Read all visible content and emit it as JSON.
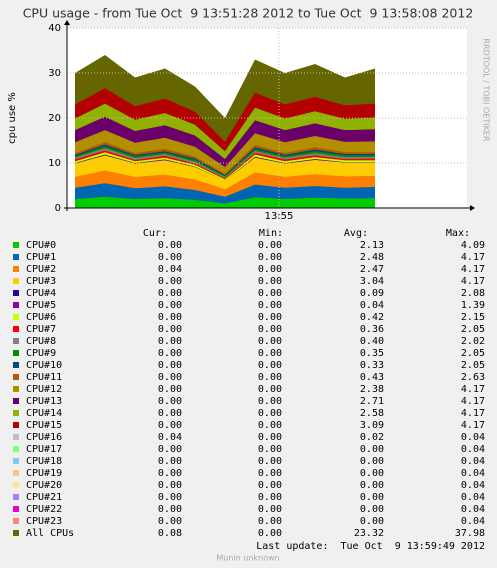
{
  "chart_data": {
    "type": "area",
    "title": "CPU usage - from Tue Oct  9 13:51:28 2012 to Tue Oct  9 13:58:08 2012",
    "ylabel": "cpu use %",
    "side_text": "RRDTOOL / TOBI OETIKER",
    "footer": "Munin unknown",
    "last_update": "Last update:  Tue Oct  9 13:59:49 2012",
    "legend_header": [
      "Cur:",
      "Min:",
      "Avg:",
      "Max:"
    ],
    "grid": true,
    "stacked": true,
    "x": [
      "13:51:36",
      "13:52:06",
      "13:52:36",
      "13:53:06",
      "13:53:36",
      "13:54:06",
      "13:54:36",
      "13:55:06",
      "13:55:36",
      "13:56:06",
      "13:56:36"
    ],
    "xlim": [
      "13:51:28",
      "13:58:08"
    ],
    "xticks": [
      {
        "value": "13:55:00",
        "label": "13:55"
      }
    ],
    "ylim": [
      0,
      40
    ],
    "yticks": [
      0,
      10,
      20,
      30,
      40
    ],
    "series": [
      {
        "name": "All CPUs",
        "color": "#666600",
        "stack": false,
        "values": [
          30,
          34,
          29,
          31,
          27,
          20,
          33,
          30,
          32,
          29,
          31
        ],
        "cur": "0.08",
        "min": "0.00",
        "avg": "23.32",
        "max": "37.98"
      },
      {
        "name": "CPU#0",
        "color": "#00cc00",
        "values": [
          2,
          2.5,
          2,
          2.2,
          1.8,
          1,
          2.4,
          2,
          2.3,
          2.1,
          2.2
        ],
        "cur": "0.00",
        "min": "0.00",
        "avg": "2.13",
        "max": "4.09"
      },
      {
        "name": "CPU#1",
        "color": "#0066b3",
        "values": [
          2.5,
          3,
          2.4,
          2.6,
          2.2,
          1.5,
          2.8,
          2.5,
          2.6,
          2.4,
          2.5
        ],
        "cur": "0.00",
        "min": "0.00",
        "avg": "2.48",
        "max": "4.17"
      },
      {
        "name": "CPU#2",
        "color": "#ff8000",
        "values": [
          2.4,
          2.8,
          2.5,
          2.6,
          2.3,
          1.6,
          2.7,
          2.4,
          2.6,
          2.5,
          2.4
        ],
        "cur": "0.04",
        "min": "0.00",
        "avg": "2.47",
        "max": "4.17"
      },
      {
        "name": "CPU#3",
        "color": "#ffcc00",
        "values": [
          3,
          3.4,
          3,
          3.2,
          2.8,
          2,
          3.3,
          3,
          3.2,
          3.1,
          3
        ],
        "cur": "0.00",
        "min": "0.00",
        "avg": "3.04",
        "max": "4.17"
      },
      {
        "name": "CPU#4",
        "color": "#330099",
        "values": [
          0.1,
          0.1,
          0.1,
          0.1,
          0.1,
          0,
          0.1,
          0.1,
          0.1,
          0.1,
          0.1
        ],
        "cur": "0.00",
        "min": "0.00",
        "avg": "0.09",
        "max": "2.08"
      },
      {
        "name": "CPU#5",
        "color": "#990099",
        "values": [
          0,
          0.1,
          0,
          0.1,
          0,
          0,
          0.1,
          0,
          0.1,
          0,
          0
        ],
        "cur": "0.00",
        "min": "0.00",
        "avg": "0.04",
        "max": "1.39"
      },
      {
        "name": "CPU#6",
        "color": "#ccff00",
        "values": [
          0.4,
          0.5,
          0.4,
          0.4,
          0.4,
          0.3,
          0.5,
          0.4,
          0.4,
          0.4,
          0.4
        ],
        "cur": "0.00",
        "min": "0.00",
        "avg": "0.42",
        "max": "2.15"
      },
      {
        "name": "CPU#7",
        "color": "#ff0000",
        "values": [
          0.4,
          0.4,
          0.3,
          0.4,
          0.3,
          0.2,
          0.4,
          0.4,
          0.4,
          0.3,
          0.4
        ],
        "cur": "0.00",
        "min": "0.00",
        "avg": "0.36",
        "max": "2.05"
      },
      {
        "name": "CPU#8",
        "color": "#808080",
        "values": [
          0.4,
          0.5,
          0.4,
          0.4,
          0.4,
          0.3,
          0.4,
          0.4,
          0.5,
          0.4,
          0.4
        ],
        "cur": "0.00",
        "min": "0.00",
        "avg": "0.40",
        "max": "2.02"
      },
      {
        "name": "CPU#9",
        "color": "#008f00",
        "values": [
          0.3,
          0.4,
          0.4,
          0.3,
          0.4,
          0.2,
          0.4,
          0.3,
          0.4,
          0.4,
          0.3
        ],
        "cur": "0.00",
        "min": "0.00",
        "avg": "0.35",
        "max": "2.05"
      },
      {
        "name": "CPU#10",
        "color": "#00487d",
        "values": [
          0.3,
          0.4,
          0.3,
          0.3,
          0.3,
          0.2,
          0.4,
          0.3,
          0.4,
          0.3,
          0.3
        ],
        "cur": "0.00",
        "min": "0.00",
        "avg": "0.33",
        "max": "2.05"
      },
      {
        "name": "CPU#11",
        "color": "#b35a00",
        "values": [
          0.4,
          0.5,
          0.4,
          0.5,
          0.4,
          0.3,
          0.5,
          0.4,
          0.5,
          0.4,
          0.4
        ],
        "cur": "0.00",
        "min": "0.00",
        "avg": "0.43",
        "max": "2.63"
      },
      {
        "name": "CPU#12",
        "color": "#b38f00",
        "values": [
          2.4,
          2.7,
          2.3,
          2.5,
          2.2,
          1.5,
          2.6,
          2.4,
          2.5,
          2.3,
          2.4
        ],
        "cur": "0.00",
        "min": "0.00",
        "avg": "2.38",
        "max": "4.17"
      },
      {
        "name": "CPU#13",
        "color": "#6b006b",
        "values": [
          2.7,
          3,
          2.6,
          2.8,
          2.5,
          1.8,
          2.9,
          2.7,
          2.8,
          2.6,
          2.7
        ],
        "cur": "0.00",
        "min": "0.00",
        "avg": "2.71",
        "max": "4.17"
      },
      {
        "name": "CPU#14",
        "color": "#8fb300",
        "values": [
          2.6,
          2.9,
          2.5,
          2.7,
          2.4,
          1.7,
          2.8,
          2.6,
          2.7,
          2.5,
          2.6
        ],
        "cur": "0.00",
        "min": "0.00",
        "avg": "2.58",
        "max": "4.17"
      },
      {
        "name": "CPU#15",
        "color": "#b30000",
        "values": [
          3.1,
          3.4,
          3,
          3.2,
          2.9,
          2.1,
          3.3,
          3.1,
          3.2,
          3,
          3.1
        ],
        "cur": "0.00",
        "min": "0.00",
        "avg": "3.09",
        "max": "4.17"
      },
      {
        "name": "CPU#16",
        "color": "#bebebe",
        "values": [
          0,
          0,
          0,
          0,
          0,
          0,
          0,
          0,
          0,
          0,
          0
        ],
        "cur": "0.04",
        "min": "0.00",
        "avg": "0.02",
        "max": "0.04"
      },
      {
        "name": "CPU#17",
        "color": "#80ff80",
        "values": [
          0,
          0,
          0,
          0,
          0,
          0,
          0,
          0,
          0,
          0,
          0
        ],
        "cur": "0.00",
        "min": "0.00",
        "avg": "0.00",
        "max": "0.04"
      },
      {
        "name": "CPU#18",
        "color": "#80c9ff",
        "values": [
          0,
          0,
          0,
          0,
          0,
          0,
          0,
          0,
          0,
          0,
          0
        ],
        "cur": "0.00",
        "min": "0.00",
        "avg": "0.00",
        "max": "0.04"
      },
      {
        "name": "CPU#19",
        "color": "#ffc080",
        "values": [
          0,
          0,
          0,
          0,
          0,
          0,
          0,
          0,
          0,
          0,
          0
        ],
        "cur": "0.00",
        "min": "0.00",
        "avg": "0.00",
        "max": "0.04"
      },
      {
        "name": "CPU#20",
        "color": "#ffe680",
        "values": [
          0,
          0,
          0,
          0,
          0,
          0,
          0,
          0,
          0,
          0,
          0
        ],
        "cur": "0.00",
        "min": "0.00",
        "avg": "0.00",
        "max": "0.04"
      },
      {
        "name": "CPU#21",
        "color": "#aa80ff",
        "values": [
          0,
          0,
          0,
          0,
          0,
          0,
          0,
          0,
          0,
          0,
          0
        ],
        "cur": "0.00",
        "min": "0.00",
        "avg": "0.00",
        "max": "0.04"
      },
      {
        "name": "CPU#22",
        "color": "#ee00cc",
        "values": [
          0,
          0,
          0,
          0,
          0,
          0,
          0,
          0,
          0,
          0,
          0
        ],
        "cur": "0.00",
        "min": "0.00",
        "avg": "0.00",
        "max": "0.04"
      },
      {
        "name": "CPU#23",
        "color": "#ff8080",
        "values": [
          0,
          0,
          0,
          0,
          0,
          0,
          0,
          0,
          0,
          0,
          0
        ],
        "cur": "0.00",
        "min": "0.00",
        "avg": "0.00",
        "max": "0.04"
      }
    ]
  }
}
